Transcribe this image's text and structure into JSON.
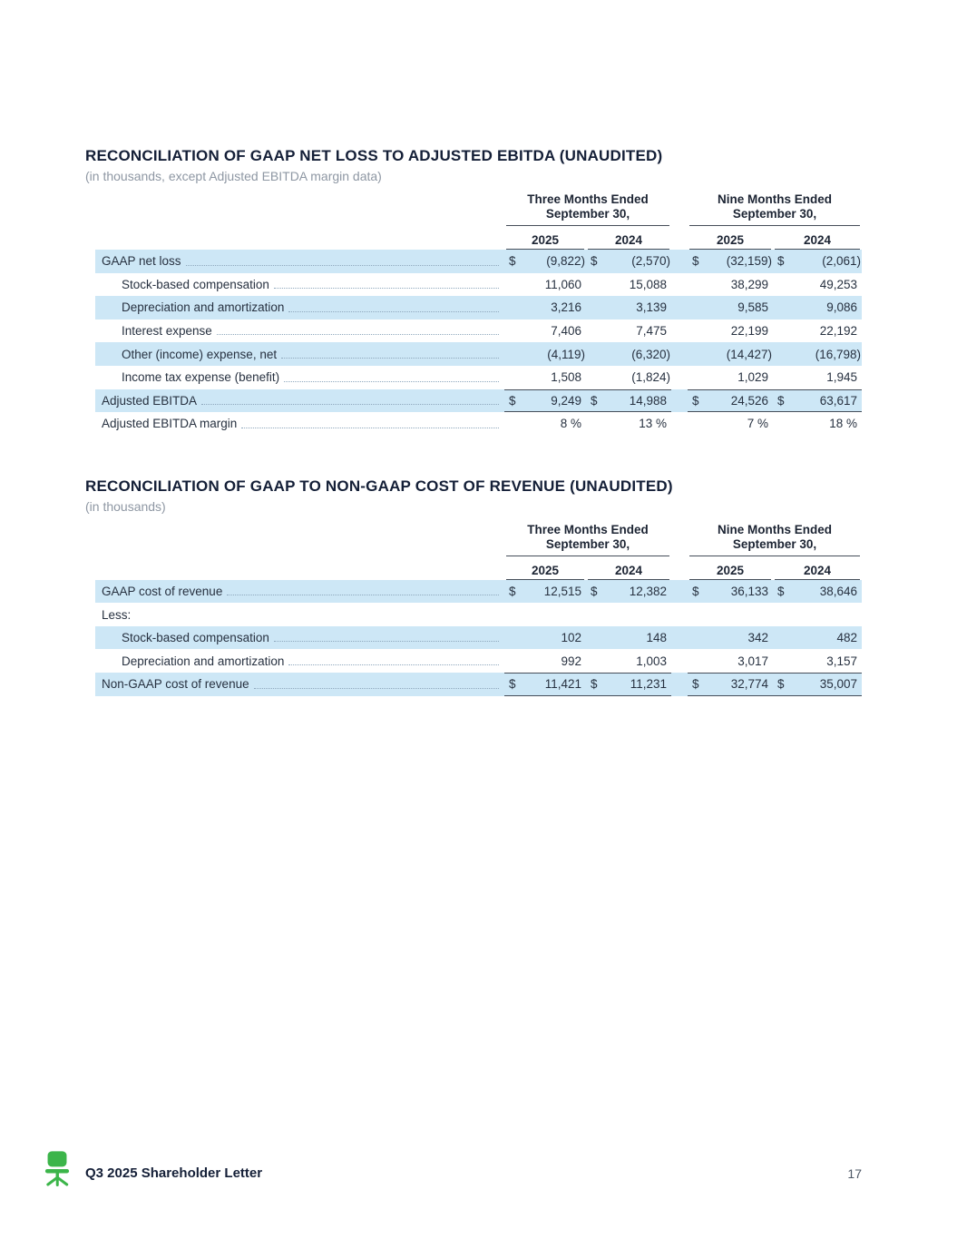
{
  "document": {
    "footer": {
      "brand": "Q3 2025 Shareholder Letter",
      "page_number": "17"
    }
  },
  "format": {
    "currency_symbol": "$"
  },
  "colors": {
    "stripe_blue": "#cde7f6",
    "accent_green": "#3cb54a",
    "rule_gray": "#454d59"
  },
  "tables": [
    {
      "title": "RECONCILIATION OF GAAP NET LOSS TO ADJUSTED EBITDA (UNAUDITED)",
      "subtitle": "(in thousands, except Adjusted EBITDA margin data)",
      "column_groups": [
        {
          "line1": "Three Months Ended",
          "line2": "September 30,"
        },
        {
          "line1": "Nine Months Ended",
          "line2": "September 30,"
        }
      ],
      "year_headers": [
        "2025",
        "2024",
        "2025",
        "2024"
      ],
      "rows": [
        {
          "label": "GAAP net loss",
          "indent": false,
          "stripe": true,
          "leader": true,
          "dollars": true,
          "total_rule": false,
          "values": [
            "(9,822)",
            "(2,570)",
            "(32,159)",
            "(2,061)"
          ]
        },
        {
          "label": "Stock-based compensation",
          "indent": true,
          "stripe": false,
          "leader": true,
          "dollars": false,
          "total_rule": false,
          "values": [
            "11,060",
            "15,088",
            "38,299",
            "49,253"
          ]
        },
        {
          "label": "Depreciation and amortization",
          "indent": true,
          "stripe": true,
          "leader": true,
          "dollars": false,
          "total_rule": false,
          "values": [
            "3,216",
            "3,139",
            "9,585",
            "9,086"
          ]
        },
        {
          "label": "Interest expense",
          "indent": true,
          "stripe": false,
          "leader": true,
          "dollars": false,
          "total_rule": false,
          "values": [
            "7,406",
            "7,475",
            "22,199",
            "22,192"
          ]
        },
        {
          "label": "Other (income) expense, net",
          "indent": true,
          "stripe": true,
          "leader": true,
          "dollars": false,
          "total_rule": false,
          "values": [
            "(4,119)",
            "(6,320)",
            "(14,427)",
            "(16,798)"
          ]
        },
        {
          "label": "Income tax expense (benefit)",
          "indent": true,
          "stripe": false,
          "leader": true,
          "dollars": false,
          "total_rule": false,
          "values": [
            "1,508",
            "(1,824)",
            "1,029",
            "1,945"
          ]
        },
        {
          "label": "Adjusted EBITDA",
          "indent": false,
          "stripe": true,
          "leader": true,
          "dollars": true,
          "total_rule": true,
          "values": [
            "9,249",
            "14,988",
            "24,526",
            "63,617"
          ]
        },
        {
          "label": "Adjusted EBITDA margin",
          "indent": false,
          "stripe": false,
          "leader": true,
          "dollars": false,
          "total_rule": false,
          "values": [
            "8 %",
            "13 %",
            "7 %",
            "18 %"
          ]
        }
      ]
    },
    {
      "title": "RECONCILIATION OF GAAP TO NON-GAAP COST OF REVENUE (UNAUDITED)",
      "subtitle": "(in thousands)",
      "column_groups": [
        {
          "line1": "Three Months Ended",
          "line2": "September 30,"
        },
        {
          "line1": "Nine Months Ended",
          "line2": "September 30,"
        }
      ],
      "year_headers": [
        "2025",
        "2024",
        "2025",
        "2024"
      ],
      "rows": [
        {
          "label": "GAAP cost of revenue",
          "indent": false,
          "stripe": true,
          "leader": true,
          "dollars": true,
          "total_rule": false,
          "values": [
            "12,515",
            "12,382",
            "36,133",
            "38,646"
          ]
        },
        {
          "label": "Less:",
          "indent": false,
          "stripe": false,
          "leader": false,
          "dollars": false,
          "total_rule": false,
          "values": [
            "",
            "",
            "",
            ""
          ]
        },
        {
          "label": "Stock-based compensation",
          "indent": true,
          "stripe": true,
          "leader": true,
          "dollars": false,
          "total_rule": false,
          "values": [
            "102",
            "148",
            "342",
            "482"
          ]
        },
        {
          "label": "Depreciation and amortization",
          "indent": true,
          "stripe": false,
          "leader": true,
          "dollars": false,
          "total_rule": false,
          "values": [
            "992",
            "1,003",
            "3,017",
            "3,157"
          ]
        },
        {
          "label": "Non-GAAP cost of revenue",
          "indent": false,
          "stripe": true,
          "leader": true,
          "dollars": true,
          "total_rule": true,
          "values": [
            "11,421",
            "11,231",
            "32,774",
            "35,007"
          ]
        }
      ]
    }
  ]
}
